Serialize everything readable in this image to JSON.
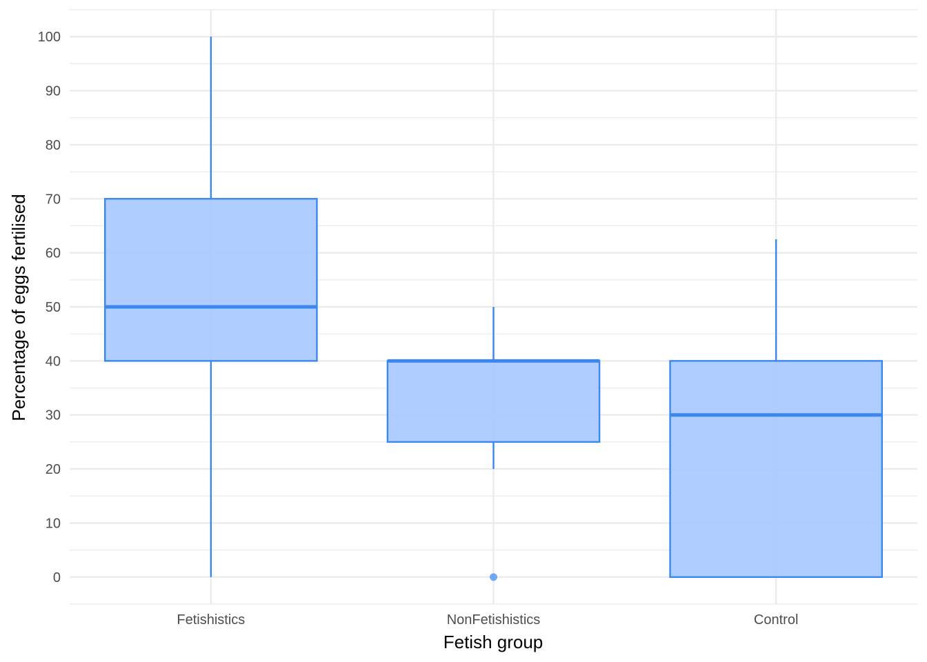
{
  "chart_data": {
    "type": "boxplot",
    "title": "",
    "xlabel": "Fetish group",
    "ylabel": "Percentage of eggs fertilised",
    "categories": [
      "Fetishistics",
      "NonFetishistics",
      "Control"
    ],
    "boxes": [
      {
        "category": "Fetishistics",
        "whisker_low": 0,
        "q1": 40,
        "median": 50,
        "q3": 70,
        "whisker_high": 100,
        "outliers": []
      },
      {
        "category": "NonFetishistics",
        "whisker_low": 20,
        "q1": 25,
        "median": 40,
        "q3": 40,
        "whisker_high": 50,
        "outliers": [
          0
        ]
      },
      {
        "category": "Control",
        "whisker_low": 0,
        "q1": 0,
        "median": 30,
        "q3": 40,
        "whisker_high": 62.5,
        "outliers": []
      }
    ],
    "ylim": [
      -5,
      105
    ],
    "y_ticks": [
      "0",
      "10",
      "20",
      "30",
      "40",
      "50",
      "60",
      "70",
      "80",
      "90",
      "100"
    ],
    "grid": true,
    "legend": "none",
    "colors": {
      "box_fill": "#a6c8ff",
      "box_stroke": "#3b87f0",
      "grid": "#ebebeb"
    }
  }
}
